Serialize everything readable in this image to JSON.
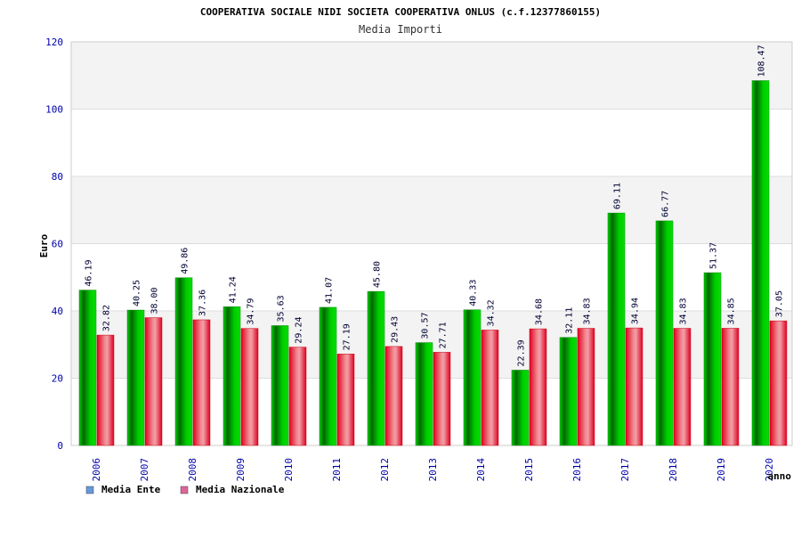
{
  "chart_data": {
    "type": "bar",
    "title": "COOPERATIVA SOCIALE NIDI SOCIETA COOPERATIVA ONLUS (c.f.12377860155)",
    "subtitle": "Media Importi",
    "ylabel": "Euro",
    "xlabel": "anno",
    "ylim": [
      0,
      120
    ],
    "yticks": [
      0,
      20,
      40,
      60,
      80,
      100,
      120
    ],
    "grid": true,
    "legend_position": "bottom-left",
    "categories": [
      "2006",
      "2007",
      "2008",
      "2009",
      "2010",
      "2011",
      "2012",
      "2013",
      "2014",
      "2015",
      "2016",
      "2017",
      "2018",
      "2019",
      "2020"
    ],
    "series": [
      {
        "name": "Media Ente",
        "color": "#00b000",
        "legend_color": "#6699dd",
        "values": [
          46.19,
          40.25,
          49.86,
          41.24,
          35.63,
          41.07,
          45.8,
          30.57,
          40.33,
          22.39,
          32.11,
          69.11,
          66.77,
          51.37,
          108.47
        ],
        "labels": [
          "46.19",
          "40.25",
          "49.86",
          "41.24",
          "35.63",
          "41.07",
          "45.80",
          "30.57",
          "40.33",
          "22.39",
          "32.11",
          "69.11",
          "66.77",
          "51.37",
          "108.47"
        ]
      },
      {
        "name": "Media Nazionale",
        "color": "#e82030",
        "legend_color": "#dd6699",
        "values": [
          32.82,
          38.0,
          37.36,
          34.79,
          29.24,
          27.19,
          29.43,
          27.71,
          34.32,
          34.68,
          34.83,
          34.94,
          34.83,
          34.85,
          37.05
        ],
        "labels": [
          "32.82",
          "38.00",
          "37.36",
          "34.79",
          "29.24",
          "27.19",
          "29.43",
          "27.71",
          "34.32",
          "34.68",
          "34.83",
          "34.94",
          "34.83",
          "34.85",
          "37.05"
        ]
      }
    ]
  }
}
